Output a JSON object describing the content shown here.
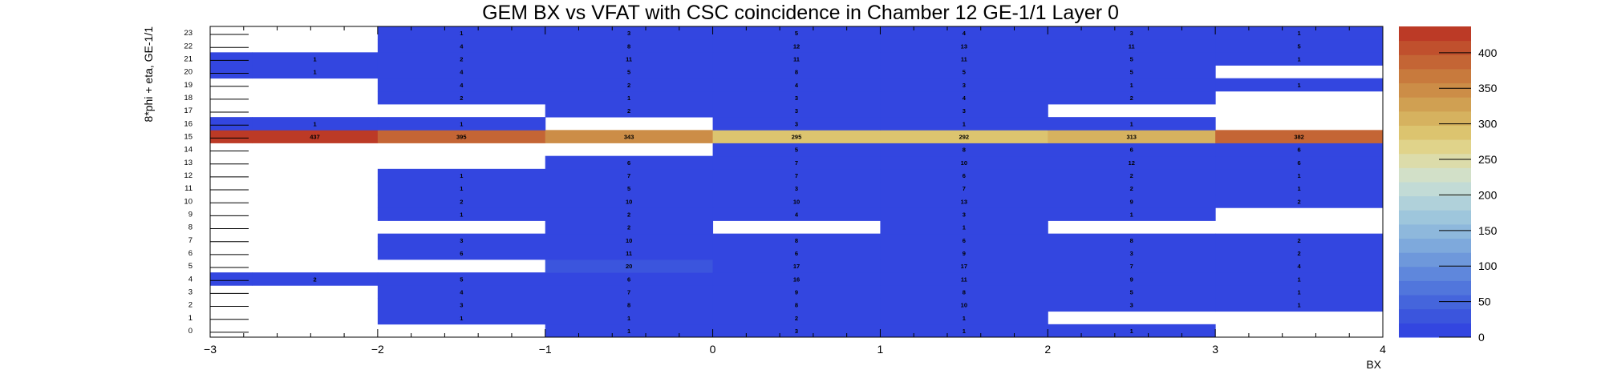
{
  "chart_data": {
    "type": "heatmap",
    "title": "GEM BX vs VFAT with CSC coincidence in Chamber 12 GE-1/1 Layer 0",
    "xlabel": "BX",
    "ylabel": "8*phi + eta, GE-1/1",
    "x_bin_edges": [
      -3,
      -2.75,
      -2,
      -1,
      0,
      1,
      2,
      3,
      4
    ],
    "x_tick_labels": [
      "−3",
      "−2",
      "−1",
      "0",
      "1",
      "2",
      "3",
      "4"
    ],
    "y_tick_labels": [
      "0",
      "1",
      "2",
      "3",
      "4",
      "5",
      "6",
      "7",
      "8",
      "9",
      "10",
      "11",
      "12",
      "13",
      "14",
      "15",
      "16",
      "17",
      "18",
      "19",
      "20",
      "21",
      "22",
      "23"
    ],
    "z_range": [
      0,
      437
    ],
    "z_tick_labels": [
      "0",
      "50",
      "100",
      "150",
      "200",
      "250",
      "300",
      "350",
      "400"
    ],
    "palette": [
      "#3346e0",
      "#3b55dd",
      "#4565dc",
      "#5176dc",
      "#5f87dc",
      "#6e98db",
      "#7ea9dc",
      "#8eb8dc",
      "#9ec6dc",
      "#b0d1da",
      "#c2dbd6",
      "#d2e0c8",
      "#dcdcaa",
      "#e0d38a",
      "#dcc46f",
      "#d6b25f",
      "#d0a052",
      "#cc8d47",
      "#c87a3d",
      "#c46535",
      "#c0502d",
      "#bc3a26"
    ],
    "colors": {
      "background": "#ffffff",
      "axis": "#000000"
    },
    "cells": [
      {
        "y": 0,
        "values": [
          null,
          null,
          null,
          1,
          3,
          1,
          1,
          null
        ]
      },
      {
        "y": 1,
        "values": [
          null,
          null,
          1,
          1,
          2,
          1,
          null,
          null
        ]
      },
      {
        "y": 2,
        "values": [
          null,
          null,
          3,
          8,
          8,
          10,
          3,
          1
        ]
      },
      {
        "y": 3,
        "values": [
          null,
          null,
          4,
          7,
          9,
          8,
          5,
          1
        ]
      },
      {
        "y": 4,
        "values": [
          2,
          2,
          5,
          6,
          16,
          11,
          9,
          1
        ]
      },
      {
        "y": 5,
        "values": [
          null,
          null,
          null,
          20,
          17,
          17,
          7,
          4
        ]
      },
      {
        "y": 6,
        "values": [
          null,
          null,
          6,
          11,
          6,
          9,
          3,
          2
        ]
      },
      {
        "y": 7,
        "values": [
          null,
          null,
          3,
          10,
          8,
          6,
          8,
          2
        ]
      },
      {
        "y": 8,
        "values": [
          null,
          null,
          null,
          2,
          null,
          1,
          null,
          null
        ]
      },
      {
        "y": 9,
        "values": [
          null,
          null,
          1,
          2,
          4,
          3,
          1,
          null
        ]
      },
      {
        "y": 10,
        "values": [
          null,
          null,
          2,
          10,
          10,
          13,
          9,
          2
        ]
      },
      {
        "y": 11,
        "values": [
          null,
          null,
          1,
          5,
          3,
          7,
          2,
          1
        ]
      },
      {
        "y": 12,
        "values": [
          null,
          null,
          1,
          7,
          7,
          6,
          2,
          1
        ]
      },
      {
        "y": 13,
        "values": [
          null,
          null,
          null,
          6,
          7,
          10,
          12,
          6
        ]
      },
      {
        "y": 14,
        "values": [
          null,
          null,
          null,
          null,
          5,
          8,
          6,
          6
        ]
      },
      {
        "y": 15,
        "values": [
          437,
          437,
          395,
          343,
          295,
          292,
          313,
          382
        ]
      },
      {
        "y": 16,
        "values": [
          1,
          1,
          1,
          null,
          3,
          1,
          1,
          null
        ]
      },
      {
        "y": 17,
        "values": [
          null,
          null,
          null,
          2,
          3,
          3,
          null,
          null
        ]
      },
      {
        "y": 18,
        "values": [
          null,
          null,
          2,
          1,
          3,
          4,
          2,
          null
        ]
      },
      {
        "y": 19,
        "values": [
          null,
          null,
          4,
          2,
          4,
          3,
          1,
          1
        ]
      },
      {
        "y": 20,
        "values": [
          1,
          1,
          4,
          5,
          8,
          5,
          5,
          null
        ]
      },
      {
        "y": 21,
        "values": [
          1,
          1,
          2,
          11,
          11,
          11,
          5,
          1
        ]
      },
      {
        "y": 22,
        "values": [
          null,
          null,
          4,
          8,
          12,
          13,
          11,
          5
        ]
      },
      {
        "y": 23,
        "values": [
          null,
          null,
          1,
          3,
          5,
          4,
          3,
          1
        ]
      }
    ],
    "labeled_bins": [
      1,
      2,
      3,
      4,
      5,
      6,
      7
    ],
    "grid": false,
    "legend": "color-scale-right"
  }
}
